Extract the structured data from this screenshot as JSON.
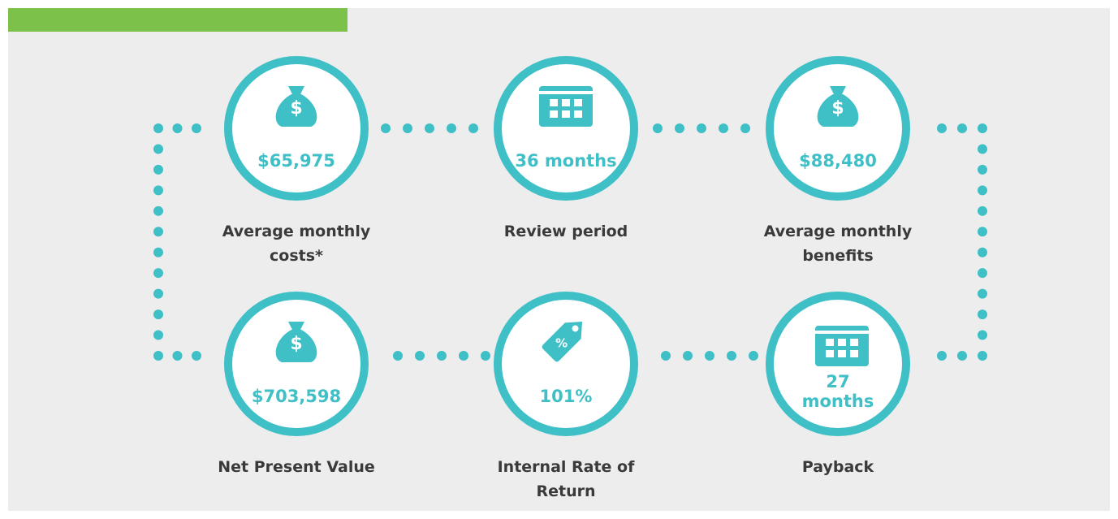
{
  "items": [
    {
      "value": "$65,975",
      "label": "Average monthly costs*"
    },
    {
      "value": "36 months",
      "label": "Review period"
    },
    {
      "value": "$88,480",
      "label": "Average monthly benefits"
    },
    {
      "value": "$703,598",
      "label": "Net Present Value"
    },
    {
      "value": "101%",
      "label": "Internal Rate of Return"
    },
    {
      "value": "27 months",
      "label": "Payback"
    }
  ]
}
